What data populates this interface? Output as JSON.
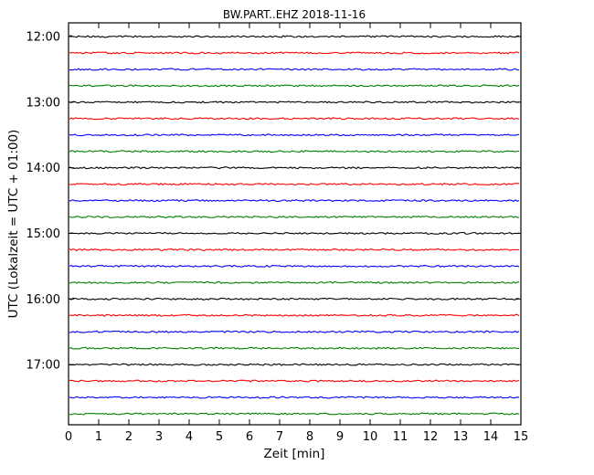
{
  "chart_data": {
    "type": "line",
    "subtype": "helicorder-dayplot",
    "title": "BW.PART..EHZ 2018-11-16",
    "xlabel": "Zeit  [min]",
    "ylabel": "UTC (Lokalzeit = UTC + 01:00)",
    "xlim": [
      0,
      15
    ],
    "x_ticks": [
      0,
      1,
      2,
      3,
      4,
      5,
      6,
      7,
      8,
      9,
      10,
      11,
      12,
      13,
      14,
      15
    ],
    "interval_minutes": 15,
    "grid": false,
    "legend": false,
    "tick_direction": "in",
    "color_cycle": [
      "#000000",
      "#ff0000",
      "#0000ff",
      "#008000"
    ],
    "amplitude_note": "all traces are flat quiet background noise, no visible seismic events",
    "rows": [
      {
        "start": "12:00",
        "label": "12:00",
        "color": "#000000"
      },
      {
        "start": "12:15",
        "label": "",
        "color": "#ff0000"
      },
      {
        "start": "12:30",
        "label": "",
        "color": "#0000ff"
      },
      {
        "start": "12:45",
        "label": "",
        "color": "#008000"
      },
      {
        "start": "13:00",
        "label": "13:00",
        "color": "#000000"
      },
      {
        "start": "13:15",
        "label": "",
        "color": "#ff0000"
      },
      {
        "start": "13:30",
        "label": "",
        "color": "#0000ff"
      },
      {
        "start": "13:45",
        "label": "",
        "color": "#008000"
      },
      {
        "start": "14:00",
        "label": "14:00",
        "color": "#000000"
      },
      {
        "start": "14:15",
        "label": "",
        "color": "#ff0000"
      },
      {
        "start": "14:30",
        "label": "",
        "color": "#0000ff"
      },
      {
        "start": "14:45",
        "label": "",
        "color": "#008000"
      },
      {
        "start": "15:00",
        "label": "15:00",
        "color": "#000000"
      },
      {
        "start": "15:15",
        "label": "",
        "color": "#ff0000"
      },
      {
        "start": "15:30",
        "label": "",
        "color": "#0000ff"
      },
      {
        "start": "15:45",
        "label": "",
        "color": "#008000"
      },
      {
        "start": "16:00",
        "label": "16:00",
        "color": "#000000"
      },
      {
        "start": "16:15",
        "label": "",
        "color": "#ff0000"
      },
      {
        "start": "16:30",
        "label": "",
        "color": "#0000ff"
      },
      {
        "start": "16:45",
        "label": "",
        "color": "#008000"
      },
      {
        "start": "17:00",
        "label": "17:00",
        "color": "#000000"
      },
      {
        "start": "17:15",
        "label": "",
        "color": "#ff0000"
      },
      {
        "start": "17:30",
        "label": "",
        "color": "#0000ff"
      },
      {
        "start": "17:45",
        "label": "",
        "color": "#008000"
      }
    ]
  }
}
